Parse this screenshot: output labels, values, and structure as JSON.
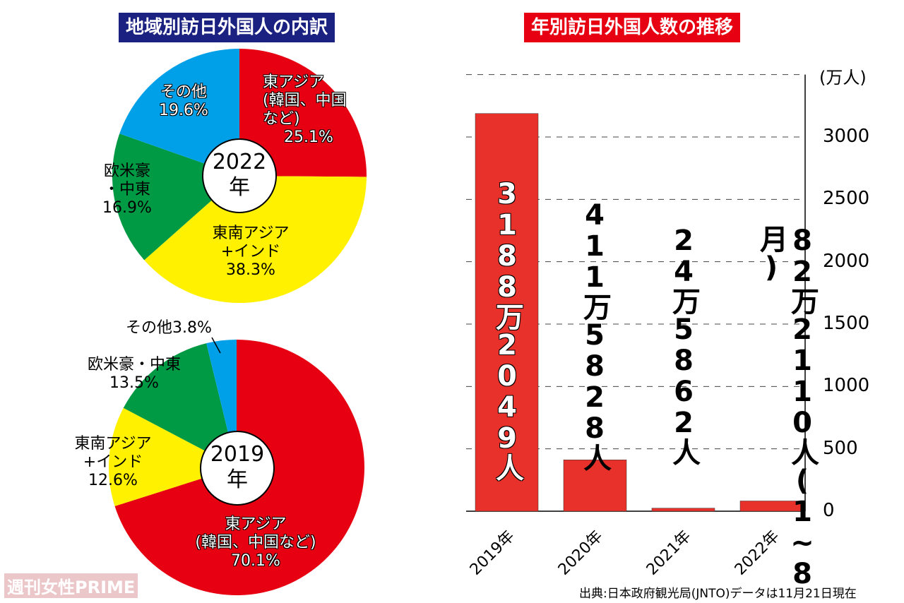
{
  "titles": {
    "pie": "地域別訪日外国人の内訳",
    "bar": "年別訪日外国人数の推移"
  },
  "chart_data": [
    {
      "type": "pie",
      "center_label": [
        "2022",
        "年"
      ],
      "slices": [
        {
          "label": "東アジア(韓国、中国など)",
          "value": 25.1,
          "color": "#e60012"
        },
        {
          "label": "東南アジア+インド",
          "value": 38.3,
          "color": "#fff100"
        },
        {
          "label": "欧米豪・中東",
          "value": 16.9,
          "color": "#009944"
        },
        {
          "label": "その他",
          "value": 19.6,
          "color": "#00a0e9"
        }
      ]
    },
    {
      "type": "pie",
      "center_label": [
        "2019",
        "年"
      ],
      "slices": [
        {
          "label": "東アジア(韓国、中国など)",
          "value": 70.1,
          "color": "#e60012"
        },
        {
          "label": "東南アジア+インド",
          "value": 12.6,
          "color": "#fff100"
        },
        {
          "label": "欧米豪・中東",
          "value": 13.5,
          "color": "#009944"
        },
        {
          "label": "その他",
          "value": 3.8,
          "color": "#00a0e9"
        }
      ]
    },
    {
      "type": "bar",
      "ylabel": "(万人)",
      "ylim": [
        0,
        3500
      ],
      "yticks": [
        0,
        500,
        1000,
        1500,
        2000,
        2500,
        3000
      ],
      "grid": true,
      "categories": [
        "2019年",
        "2020年",
        "2021年",
        "2022年"
      ],
      "values": [
        3188.2049,
        411.5828,
        24.5862,
        82.211
      ],
      "data_labels": [
        "3188万2049人",
        "411万5828人",
        "24万5862人",
        "82万2110人(1~8月)"
      ],
      "color": "#e8312a"
    }
  ],
  "pie_labels": {
    "p22": {
      "ea": [
        "東アジア",
        "(韓国、中国",
        "など)",
        "25.1%"
      ],
      "se": [
        "東南アジア",
        "+インド",
        "38.3%"
      ],
      "eu": [
        "欧米豪",
        "・中東",
        "16.9%"
      ],
      "ot": [
        "その他",
        "19.6%"
      ]
    },
    "p19": {
      "ea": [
        "東アジア",
        "(韓国、中国など)",
        "70.1%"
      ],
      "se": [
        "東南アジア",
        "+インド",
        "12.6%"
      ],
      "eu": [
        "欧米豪・中東",
        "13.5%"
      ],
      "ot": "その他3.8%"
    }
  },
  "source": "出典:日本政府観光局(JNTO)データは11月21日現在",
  "watermark": "週刊女性PRIME"
}
